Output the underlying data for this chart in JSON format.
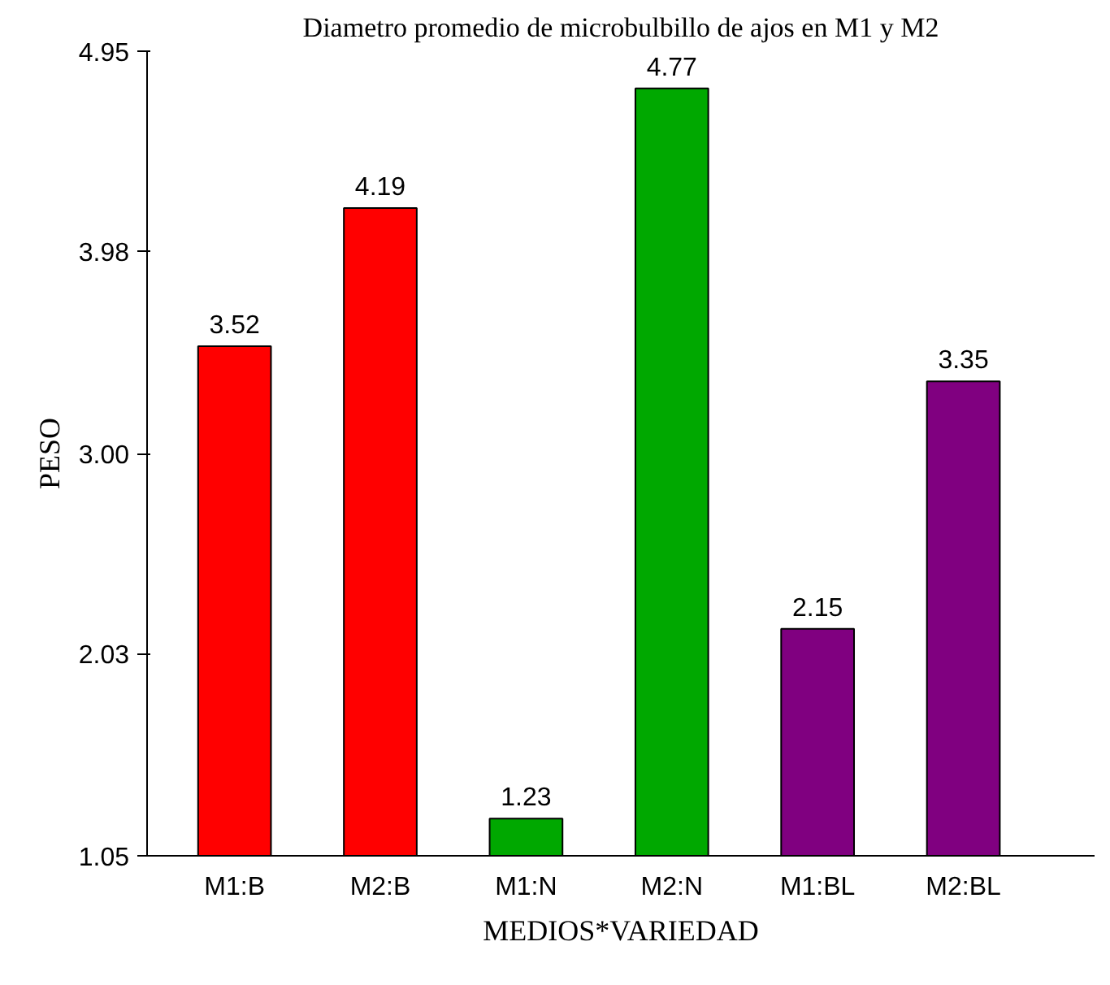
{
  "chart_data": {
    "type": "bar",
    "title": "Diametro promedio de microbulbillo de ajos en M1 y M2",
    "xlabel": "MEDIOS*VARIEDAD",
    "ylabel": "PESO",
    "categories": [
      "M1:B",
      "M2:B",
      "M1:N",
      "M2:N",
      "M1:BL",
      "M2:BL"
    ],
    "values": [
      3.52,
      4.19,
      1.23,
      4.77,
      2.15,
      3.35
    ],
    "colors": [
      "#ff0000",
      "#ff0000",
      "#00a800",
      "#00a800",
      "#800080",
      "#800080"
    ],
    "ylim": [
      1.05,
      4.95
    ],
    "yticks": [
      1.05,
      2.03,
      {
        "value": 3,
        "label": "3.00"
      },
      3.98,
      4.95
    ],
    "data_labels": true,
    "grid": false
  }
}
